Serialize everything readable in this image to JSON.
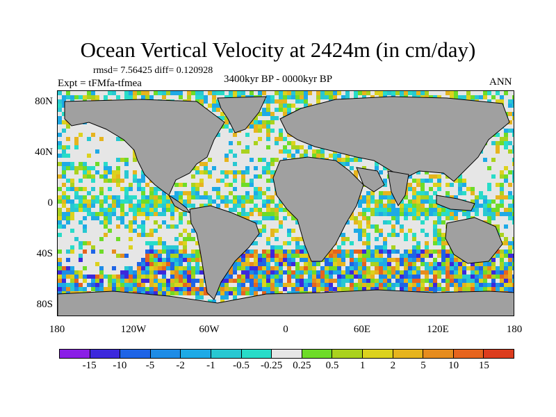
{
  "title": "Ocean Vertical Velocity at 2424m (in cm/day)",
  "stats": "rmsd= 7.56425 diff= 0.120928",
  "experiment": "Expt = tFMfa-tfmea",
  "period": "3400kyr BP - 0000kyr BP",
  "season": "ANN",
  "y_ticks": [
    "80N",
    "40N",
    "0",
    "40S",
    "80S"
  ],
  "x_ticks": [
    "180",
    "120W",
    "60W",
    "0",
    "60E",
    "120E",
    "180"
  ],
  "colorbar": {
    "labels": [
      "-15",
      "-10",
      "-5",
      "-2",
      "-1",
      "-0.5",
      "-0.25",
      "0.25",
      "0.5",
      "1",
      "2",
      "5",
      "10",
      "15"
    ],
    "colors": [
      "#8a1ee6",
      "#3c28dc",
      "#1e64e6",
      "#1e8ce6",
      "#1eaae6",
      "#28c8d2",
      "#28dcc8",
      "#e6e6e6",
      "#6edc28",
      "#aad21e",
      "#dcd21e",
      "#e6b41e",
      "#e68c1e",
      "#e6641e",
      "#dc3c1e"
    ]
  },
  "colors": {
    "land": "#a0a0a0",
    "coast": "#000000",
    "neutral": "#e6e6e6"
  }
}
